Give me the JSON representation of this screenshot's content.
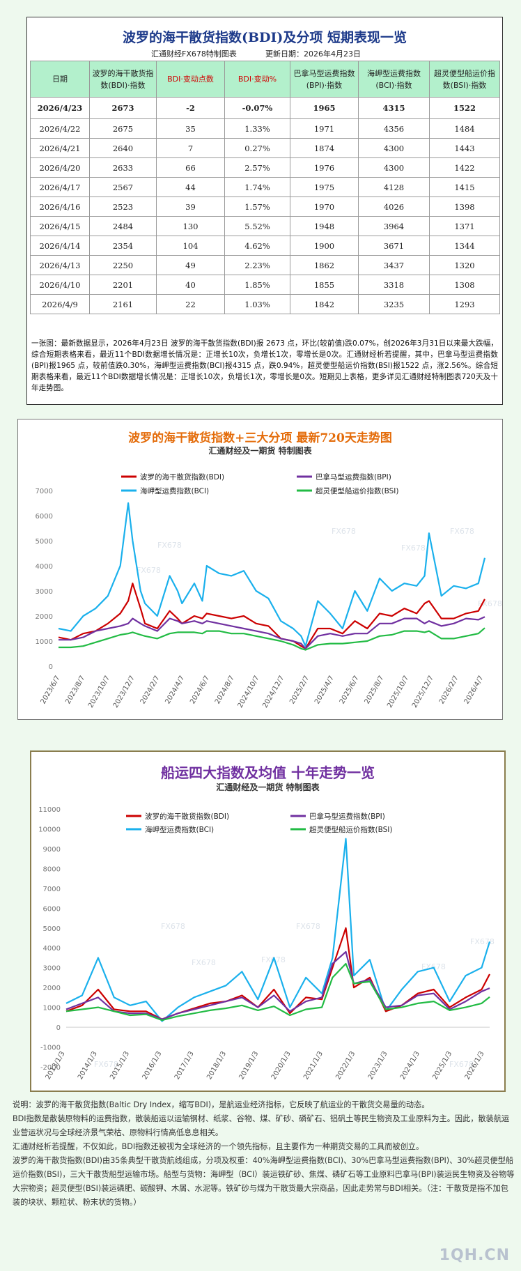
{
  "table": {
    "title": "波罗的海干散货指数(BDI)及分项  短期表现一览",
    "source": "汇通财经FX678特制图表",
    "updated": "更新日期：2026年4月23日",
    "headers": [
      "日期",
      "波罗的海干散货指数(BDI)·指数",
      "BDI·变动点数",
      "BDI·变动%",
      "巴拿马型运费指数(BPI)·指数",
      "海岬型运费指数(BCI)·指数",
      "超灵便型船运价指数(BSI)·指数"
    ],
    "rows": [
      [
        "2026/4/23",
        "2673",
        "-2",
        "-0.07%",
        "1965",
        "4315",
        "1522"
      ],
      [
        "2026/4/22",
        "2675",
        "35",
        "1.33%",
        "1971",
        "4356",
        "1484"
      ],
      [
        "2026/4/21",
        "2640",
        "7",
        "0.27%",
        "1874",
        "4300",
        "1443"
      ],
      [
        "2026/4/20",
        "2633",
        "66",
        "2.57%",
        "1976",
        "4300",
        "1422"
      ],
      [
        "2026/4/17",
        "2567",
        "44",
        "1.74%",
        "1975",
        "4128",
        "1415"
      ],
      [
        "2026/4/16",
        "2523",
        "39",
        "1.57%",
        "1970",
        "4026",
        "1398"
      ],
      [
        "2026/4/15",
        "2484",
        "130",
        "5.52%",
        "1948",
        "3964",
        "1371"
      ],
      [
        "2026/4/14",
        "2354",
        "104",
        "4.62%",
        "1900",
        "3671",
        "1344"
      ],
      [
        "2026/4/13",
        "2250",
        "49",
        "2.23%",
        "1862",
        "3437",
        "1320"
      ],
      [
        "2026/4/10",
        "2201",
        "40",
        "1.85%",
        "1855",
        "3318",
        "1308"
      ],
      [
        "2026/4/9",
        "2161",
        "22",
        "1.03%",
        "1842",
        "3235",
        "1293"
      ]
    ],
    "summary": "一张图：最新数据显示，2026年4月23日 波罗的海干散货指数(BDI)报 2673 点，环比(较前值)跌0.07%，创2026年3月31日以来最大跌幅，综合短期表格来看，最近11个BDI数据增长情况是：正增长10次，负增长1次，零增长是0次。汇通财经析若提醒，其中，巴拿马型运费指数(BPI)报1965 点，较前值跌0.30%，海岬型运费指数(BCI)报4315 点，跌0.94%，超灵便型船运价指数(BSI)报1522 点，涨2.56%。综合短期表格来看，最近11个BDI数据增长情况是：正增长10次，负增长1次，零增长是0次。短期见上表格，更多详见汇通财经特制图表720天及十年走势图。"
  },
  "colors": {
    "BDI": "#cc0000",
    "BPI": "#7030a0",
    "BCI": "#1ab0ec",
    "BSI": "#22bb44",
    "title1": "#e46c0a",
    "title2": "#7030a0"
  },
  "chart1": {
    "title": "波罗的海干散货指数+三大分项  最新720天走势图",
    "subtitle": "汇通财经及一期货  特制图表",
    "watermark": "FX678",
    "legend": [
      "波罗的海干散货指数(BDI)",
      "巴拿马型运费指数(BPI)",
      "海岬型运费指数(BCI)",
      "超灵便型船运价指数(BSI)"
    ]
  },
  "chart2": {
    "title": "船运四大指数及均值 十年走势一览",
    "subtitle": "汇通财经及一期货 特制图表",
    "watermark": "FX678",
    "legend": [
      "波罗的海干散货指数(BDI)",
      "巴拿马型运费指数(BPI)",
      "海岬型运费指数(BCI)",
      "超灵便型船运价指数(BSI)"
    ]
  },
  "chart_data": [
    {
      "type": "line",
      "title": "波罗的海干散货指数+三大分项  最新720天走势图",
      "ylim": [
        0,
        7000
      ],
      "yticks": [
        0,
        1000,
        2000,
        3000,
        4000,
        5000,
        6000,
        7000
      ],
      "xticks": [
        "2023/6/7",
        "2023/8/7",
        "2023/10/7",
        "2023/12/7",
        "2024/2/7",
        "2024/4/7",
        "2024/6/7",
        "2024/8/7",
        "2024/10/7",
        "2024/12/7",
        "2025/2/7",
        "2025/4/7",
        "2025/6/7",
        "2025/8/7",
        "2025/10/7",
        "2025/12/7",
        "2026/2/7",
        "2026/4/7"
      ],
      "x": [
        "2023/6/7",
        "2023/7/7",
        "2023/8/7",
        "2023/9/7",
        "2023/10/7",
        "2023/11/7",
        "2023/11/27",
        "2023/12/7",
        "2023/12/27",
        "2024/1/7",
        "2024/2/7",
        "2024/3/7",
        "2024/3/27",
        "2024/4/7",
        "2024/5/7",
        "2024/5/27",
        "2024/6/7",
        "2024/7/7",
        "2024/8/7",
        "2024/9/7",
        "2024/10/7",
        "2024/11/7",
        "2024/12/7",
        "2025/1/7",
        "2025/1/27",
        "2025/2/7",
        "2025/3/7",
        "2025/4/7",
        "2025/5/7",
        "2025/6/7",
        "2025/7/7",
        "2025/8/7",
        "2025/9/7",
        "2025/10/7",
        "2025/11/7",
        "2025/11/27",
        "2025/12/7",
        "2026/1/7",
        "2026/2/7",
        "2026/3/7",
        "2026/4/7",
        "2026/4/23"
      ],
      "series": [
        {
          "name": "波罗的海干散货指数(BDI)",
          "values": [
            1150,
            1050,
            1300,
            1400,
            1700,
            2100,
            2600,
            3300,
            2300,
            1700,
            1500,
            2200,
            1900,
            1700,
            2000,
            1900,
            2100,
            2000,
            1900,
            2000,
            1700,
            1600,
            1100,
            1000,
            800,
            700,
            1500,
            1500,
            1300,
            1800,
            1500,
            2100,
            2000,
            2300,
            2100,
            2500,
            2600,
            1900,
            1900,
            2100,
            2200,
            2673
          ]
        },
        {
          "name": "巴拿马型运费指数(BPI)",
          "values": [
            1050,
            1050,
            1150,
            1400,
            1500,
            1600,
            1700,
            1900,
            1700,
            1600,
            1400,
            1900,
            1800,
            1700,
            1800,
            1700,
            1800,
            1700,
            1600,
            1500,
            1400,
            1300,
            1100,
            1000,
            900,
            700,
            1200,
            1300,
            1200,
            1300,
            1300,
            1700,
            1700,
            1900,
            1900,
            1700,
            1800,
            1600,
            1700,
            1900,
            1850,
            1965
          ]
        },
        {
          "name": "海岬型运费指数(BCI)",
          "values": [
            1500,
            1400,
            2000,
            2300,
            2800,
            4000,
            6500,
            5000,
            3000,
            2500,
            2000,
            3600,
            3000,
            2500,
            3300,
            2600,
            4000,
            3700,
            3600,
            3800,
            3000,
            2700,
            1800,
            1500,
            1200,
            800,
            2600,
            2100,
            1500,
            3000,
            2200,
            3500,
            3000,
            3300,
            3200,
            3600,
            5300,
            2800,
            3200,
            3100,
            3300,
            4315
          ]
        },
        {
          "name": "超灵便型船运价指数(BSI)",
          "values": [
            750,
            750,
            800,
            950,
            1100,
            1250,
            1300,
            1350,
            1250,
            1200,
            1100,
            1300,
            1350,
            1350,
            1350,
            1300,
            1400,
            1400,
            1300,
            1300,
            1200,
            1100,
            1000,
            850,
            700,
            650,
            850,
            900,
            900,
            950,
            1000,
            1200,
            1250,
            1400,
            1400,
            1350,
            1400,
            1100,
            1100,
            1200,
            1300,
            1522
          ]
        }
      ]
    },
    {
      "type": "line",
      "title": "船运四大指数及均值 十年走势一览",
      "ylim": [
        -2000,
        11000
      ],
      "yticks": [
        -2000,
        -1000,
        0,
        1000,
        2000,
        3000,
        4000,
        5000,
        6000,
        7000,
        8000,
        9000,
        10000,
        11000
      ],
      "xticks": [
        "2013/1/3",
        "2014/1/3",
        "2015/1/3",
        "2016/1/3",
        "2017/1/3",
        "2018/1/3",
        "2019/1/3",
        "2020/1/3",
        "2021/1/3",
        "2022/1/3",
        "2023/1/3",
        "2024/1/3",
        "2025/1/3",
        "2026/1/3"
      ],
      "x": [
        "2013/1",
        "2013/7",
        "2014/1",
        "2014/7",
        "2015/1",
        "2015/7",
        "2016/1",
        "2016/7",
        "2017/1",
        "2017/7",
        "2018/1",
        "2018/7",
        "2019/1",
        "2019/7",
        "2020/1",
        "2020/7",
        "2021/1",
        "2021/5",
        "2021/10",
        "2022/1",
        "2022/7",
        "2023/1",
        "2023/7",
        "2024/1",
        "2024/7",
        "2025/1",
        "2025/7",
        "2026/1",
        "2026/4"
      ],
      "series": [
        {
          "name": "波罗的海干散货指数(BDI)",
          "values": [
            800,
            1100,
            1900,
            900,
            800,
            800,
            400,
            700,
            950,
            1200,
            1300,
            1600,
            1000,
            1900,
            700,
            1500,
            1400,
            3000,
            5000,
            2000,
            2500,
            800,
            1100,
            1700,
            1900,
            1000,
            1500,
            1900,
            2673
          ]
        },
        {
          "name": "巴拿马型运费指数(BPI)",
          "values": [
            900,
            1200,
            1500,
            800,
            700,
            700,
            400,
            700,
            900,
            1100,
            1300,
            1500,
            1000,
            1600,
            800,
            1300,
            1500,
            3200,
            3800,
            2200,
            2400,
            1000,
            1100,
            1600,
            1700,
            900,
            1300,
            1800,
            1965
          ]
        },
        {
          "name": "海岬型运费指数(BCI)",
          "values": [
            1200,
            1600,
            3500,
            1500,
            1100,
            1300,
            300,
            1000,
            1500,
            1800,
            2100,
            2800,
            1400,
            3500,
            1000,
            2500,
            1700,
            3500,
            9500,
            2600,
            3400,
            800,
            1900,
            2800,
            3000,
            1300,
            2600,
            3000,
            4315
          ]
        },
        {
          "name": "超灵便型船运价指数(BSI)",
          "values": [
            800,
            900,
            1000,
            800,
            600,
            650,
            350,
            550,
            700,
            850,
            950,
            1100,
            850,
            1050,
            600,
            900,
            1000,
            2500,
            3200,
            2200,
            2300,
            900,
            1000,
            1200,
            1300,
            850,
            1000,
            1200,
            1522
          ]
        }
      ]
    }
  ],
  "notes": [
    "说明：波罗的海干散货指数(Baltic Dry Index，缩写BDI)，是航运业经济指标，它反映了航运业的干散货交易量的动态。",
    "BDI指数是散装原物料的运费指数，散装船运以运输钢材、纸浆、谷物、煤、矿砂、磷矿石、铝矾土等民生物资及工业原料为主。因此，散装航运业营运状况与全球经济景气荣枯、原物料行情高低息息相关。",
    "汇通财经析若提醒，不仅如此，BDI指数还被视为全球经济的一个领先指标，且主要作为一种期货交易的工具而被创立。",
    "波罗的海干散货指数(BDI)由35条典型干散货航线组成，分项及权重：40%海岬型运费指数(BCI)、30%巴拿马型运费指数(BPI)、30%超灵便型船运价指数(BSI)，三大干散货船型运输市场。船型与货物：海岬型（BCI）装运铁矿砂、焦煤、磷矿石等工业原料巴拿马(BPI)装运民生物资及谷物等大宗物资；超灵便型(BSI)装运磷肥、碳酸钾、木屑、水泥等。铁矿砂与煤为干散货最大宗商品，因此走势常与BDI相关。（注：干散货是指不加包装的块状、颗粒状、粉末状的货物。）"
  ],
  "site": "1QH.CN"
}
